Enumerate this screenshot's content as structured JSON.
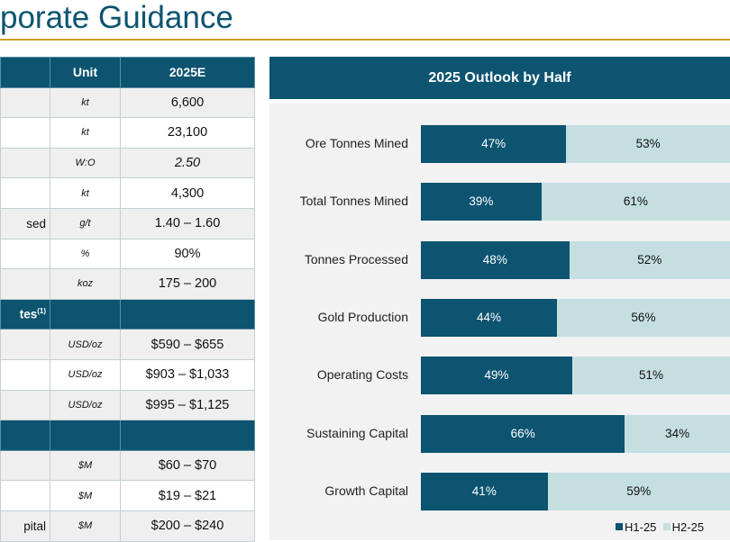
{
  "page": {
    "title": "porate Guidance"
  },
  "table": {
    "header": {
      "unit": "Unit",
      "year": "2025E"
    },
    "rows": [
      {
        "label": "",
        "unit": "kt",
        "value": "6,600",
        "style": "gray"
      },
      {
        "label": "",
        "unit": "kt",
        "value": "23,100",
        "style": "white"
      },
      {
        "label": "",
        "unit": "W:O",
        "value": "2.50",
        "style": "gray",
        "italic": true
      },
      {
        "label": "",
        "unit": "kt",
        "value": "4,300",
        "style": "white"
      },
      {
        "label": "sed",
        "unit": "g/t",
        "value": "1.40 – 1.60",
        "style": "gray"
      },
      {
        "label": "",
        "unit": "%",
        "value": "90%",
        "style": "white"
      },
      {
        "label": "",
        "unit": "koz",
        "value": "175 – 200",
        "style": "gray"
      },
      {
        "label": "tes",
        "sup": "(1)",
        "unit": "",
        "value": "",
        "style": "section"
      },
      {
        "label": "",
        "unit": "USD/oz",
        "value": "$590 – $655",
        "style": "gray"
      },
      {
        "label": "",
        "unit": "USD/oz",
        "value": "$903 – $1,033",
        "style": "white"
      },
      {
        "label": "",
        "unit": "USD/oz",
        "value": "$995 – $1,125",
        "style": "gray"
      },
      {
        "label": "",
        "unit": "",
        "value": "",
        "style": "section"
      },
      {
        "label": "",
        "unit": "$M",
        "value": "$60 – $70",
        "style": "gray"
      },
      {
        "label": "",
        "unit": "$M",
        "value": "$19 – $21",
        "style": "white"
      },
      {
        "label": "pital",
        "unit": "$M",
        "value": "$200 – $240",
        "style": "gray"
      }
    ]
  },
  "chart_data": {
    "type": "bar",
    "orientation": "horizontal",
    "stacked": true,
    "title": "2025 Outlook by Half",
    "categories": [
      "Ore Tonnes Mined",
      "Total Tonnes Mined",
      "Tonnes Processed",
      "Gold Production",
      "Operating Costs",
      "Sustaining Capital",
      "Growth Capital"
    ],
    "series": [
      {
        "name": "H1-25",
        "values": [
          47,
          39,
          48,
          44,
          49,
          66,
          41
        ],
        "labels": [
          "47%",
          "39%",
          "48%",
          "44%",
          "49%",
          "66%",
          "41%"
        ],
        "color": "#0d5470"
      },
      {
        "name": "H2-25",
        "values": [
          53,
          61,
          52,
          56,
          51,
          34,
          59
        ],
        "labels": [
          "53%",
          "61%",
          "52%",
          "56%",
          "51%",
          "34%",
          "59%"
        ],
        "color": "#c5dfe1"
      }
    ],
    "xlim": [
      0,
      100
    ],
    "legend": "bottom-right",
    "grid": false
  }
}
